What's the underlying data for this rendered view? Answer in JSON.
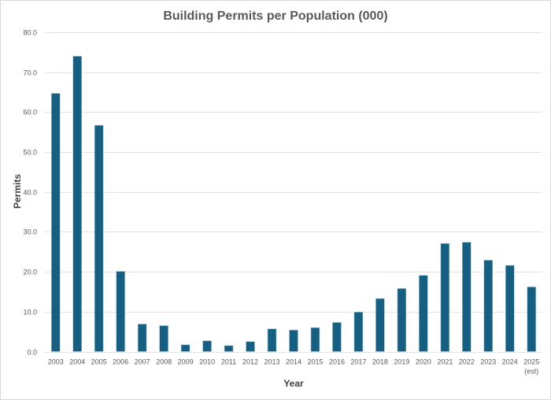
{
  "chart_data": {
    "type": "bar",
    "title": "Building Permits per Population (000)",
    "xlabel": "Year",
    "ylabel": "Permits",
    "ylim": [
      0,
      80
    ],
    "yticks": [
      "0.0",
      "10.0",
      "20.0",
      "30.0",
      "40.0",
      "50.0",
      "60.0",
      "70.0",
      "80.0"
    ],
    "ytick_values": [
      0,
      10,
      20,
      30,
      40,
      50,
      60,
      70,
      80
    ],
    "grid": true,
    "legend": "none",
    "bar_color": "#155f82",
    "categories": [
      "2003",
      "2004",
      "2005",
      "2006",
      "2007",
      "2008",
      "2009",
      "2010",
      "2011",
      "2012",
      "2013",
      "2014",
      "2015",
      "2016",
      "2017",
      "2018",
      "2019",
      "2020",
      "2021",
      "2022",
      "2023",
      "2024",
      "2025"
    ],
    "category_sublabels": [
      "",
      "",
      "",
      "",
      "",
      "",
      "",
      "",
      "",
      "",
      "",
      "",
      "",
      "",
      "",
      "",
      "",
      "",
      "",
      "",
      "",
      "",
      "(est)"
    ],
    "series": [
      {
        "name": "Permits",
        "values": [
          64.7,
          74.0,
          56.7,
          20.1,
          6.9,
          6.5,
          1.7,
          2.7,
          1.5,
          2.5,
          5.7,
          5.4,
          6.0,
          7.3,
          9.9,
          13.3,
          15.8,
          19.1,
          27.1,
          27.4,
          22.9,
          21.6,
          16.2
        ]
      }
    ]
  }
}
